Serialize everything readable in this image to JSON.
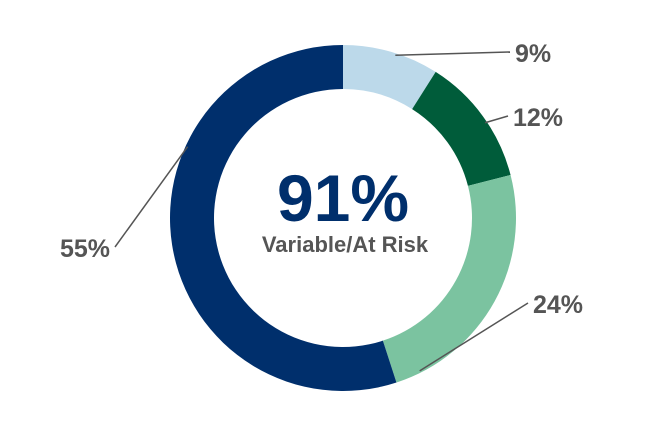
{
  "chart_data": {
    "type": "pie",
    "title": "",
    "center": {
      "value": "91%",
      "caption": "Variable/At Risk"
    },
    "slices": [
      {
        "value": 9,
        "label": "9%",
        "color": "#bcd9ea"
      },
      {
        "value": 12,
        "label": "12%",
        "color": "#005c3a"
      },
      {
        "value": 24,
        "label": "24%",
        "color": "#7bc3a0"
      },
      {
        "value": 55,
        "label": "55%",
        "color": "#002f6c"
      }
    ],
    "center_value_color": "#002f6c",
    "center_caption_color": "#555555"
  }
}
